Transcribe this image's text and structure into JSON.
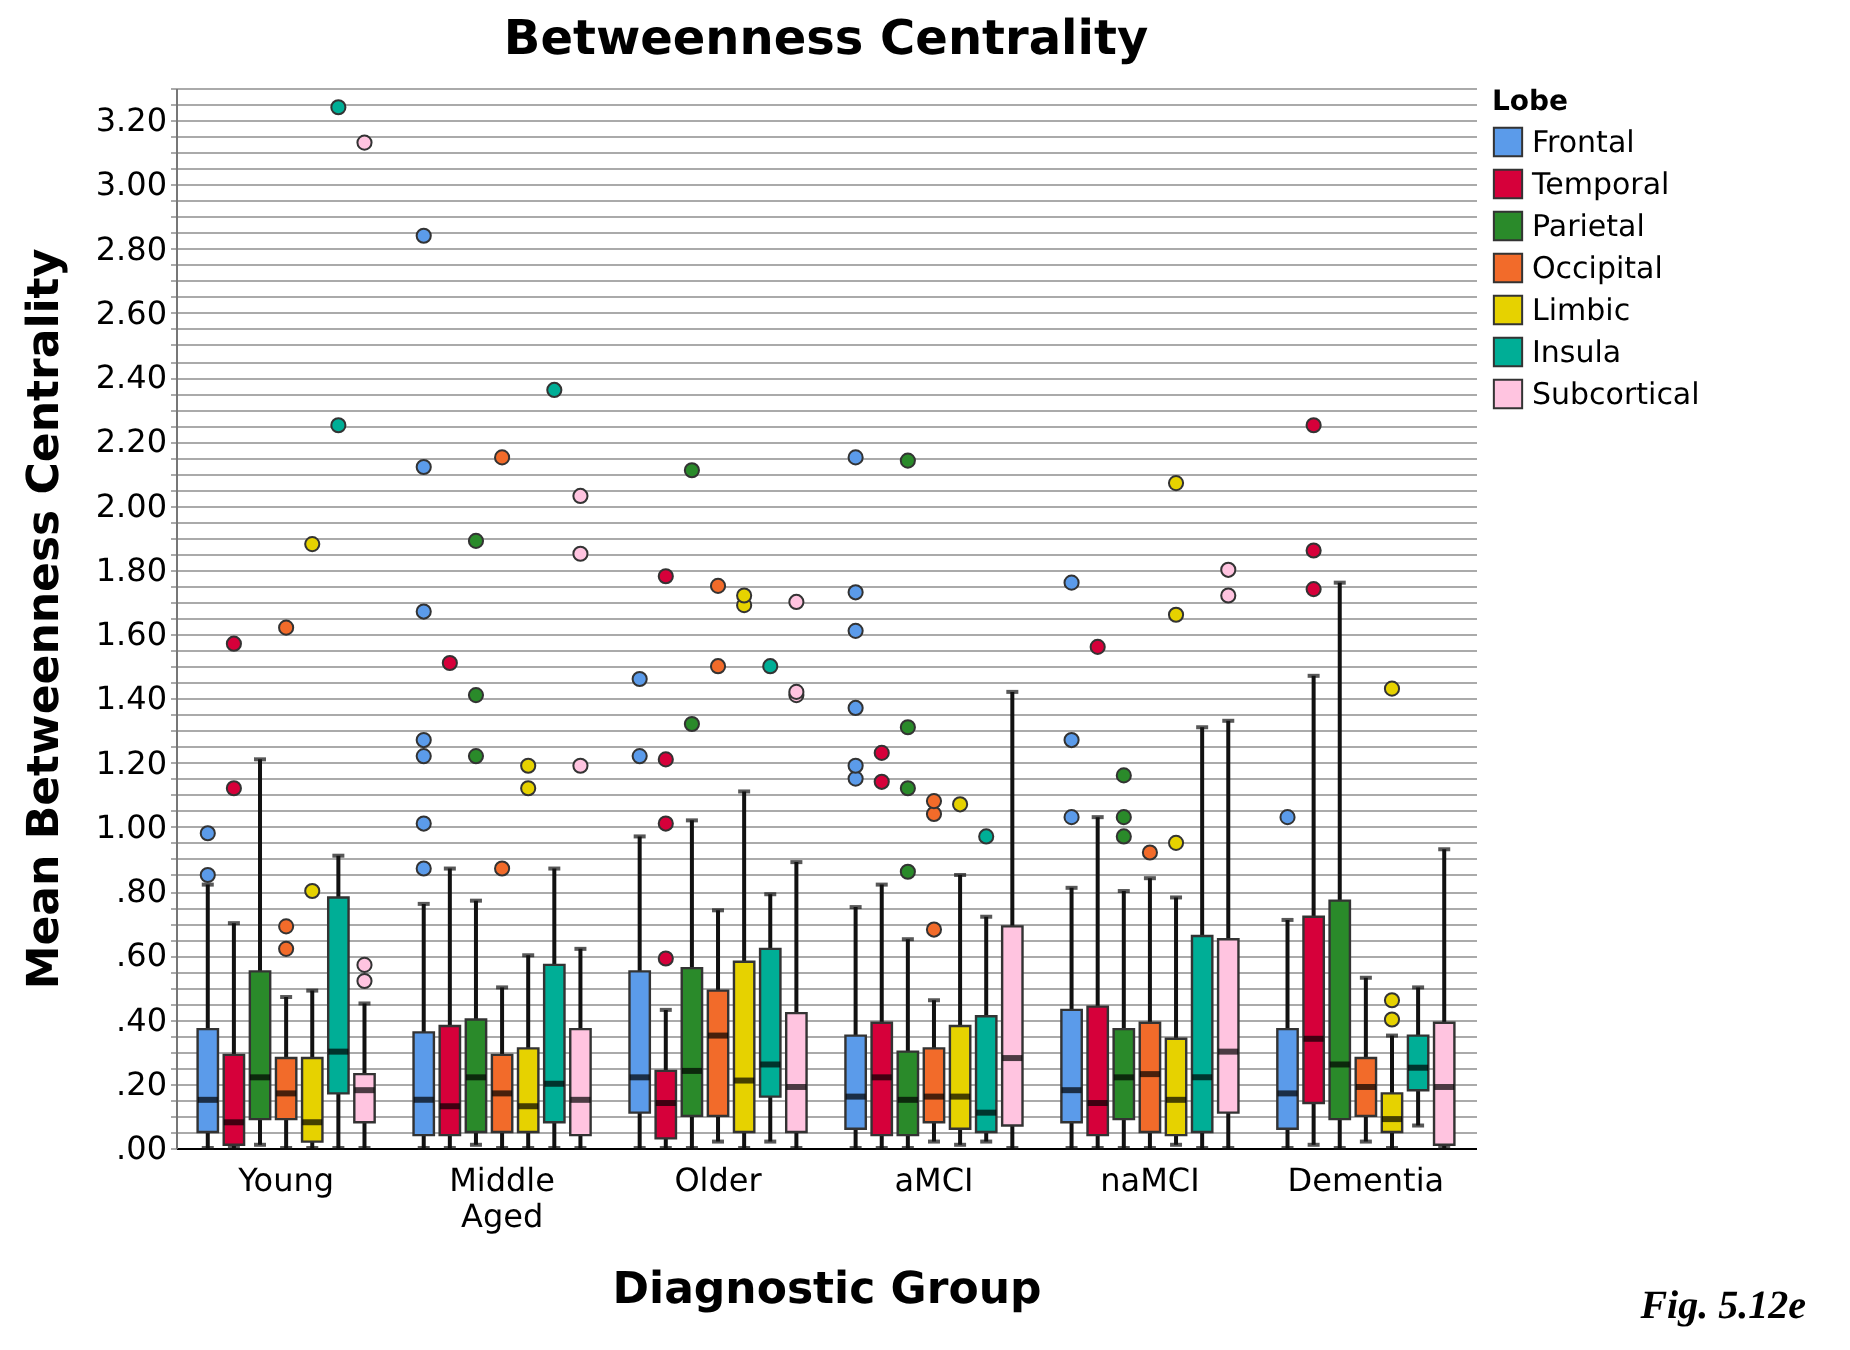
{
  "chart_data": {
    "type": "box",
    "title": "Betweenness Centrality",
    "xlabel": "Diagnostic Group",
    "ylabel": "Mean Betweenness Centrality",
    "legend_title": "Lobe",
    "legend": "top right",
    "grid": "y",
    "annotations": [
      "Fig. 5.12e"
    ],
    "categories": [
      "Young",
      "Middle Aged",
      "Older",
      "aMCI",
      "naMCI",
      "Dementia"
    ],
    "ylim": [
      0,
      3.3
    ],
    "yticks": [
      {
        "value": 0,
        "label": ".00"
      },
      {
        "value": 0.05,
        "label": null
      },
      {
        "value": 0.1,
        "label": null
      },
      {
        "value": 0.15,
        "label": null
      },
      {
        "value": 0.2,
        "label": ".20"
      },
      {
        "value": 0.25,
        "label": null
      },
      {
        "value": 0.3,
        "label": null
      },
      {
        "value": 0.35,
        "label": null
      },
      {
        "value": 0.4,
        "label": ".40"
      },
      {
        "value": 0.45,
        "label": null
      },
      {
        "value": 0.5,
        "label": null
      },
      {
        "value": 0.55,
        "label": null
      },
      {
        "value": 0.6,
        "label": ".60"
      },
      {
        "value": 0.65,
        "label": null
      },
      {
        "value": 0.7,
        "label": null
      },
      {
        "value": 0.75,
        "label": null
      },
      {
        "value": 0.8,
        "label": ".80"
      },
      {
        "value": 0.85,
        "label": null
      },
      {
        "value": 0.9,
        "label": null
      },
      {
        "value": 0.95,
        "label": null
      },
      {
        "value": 1,
        "label": "1.00"
      },
      {
        "value": 1.05,
        "label": null
      },
      {
        "value": 1.1,
        "label": null
      },
      {
        "value": 1.15,
        "label": null
      },
      {
        "value": 1.2,
        "label": "1.20"
      },
      {
        "value": 1.25,
        "label": null
      },
      {
        "value": 1.3,
        "label": null
      },
      {
        "value": 1.35,
        "label": null
      },
      {
        "value": 1.4,
        "label": "1.40"
      },
      {
        "value": 1.45,
        "label": null
      },
      {
        "value": 1.5,
        "label": null
      },
      {
        "value": 1.55,
        "label": null
      },
      {
        "value": 1.6,
        "label": "1.60"
      },
      {
        "value": 1.65,
        "label": null
      },
      {
        "value": 1.7,
        "label": null
      },
      {
        "value": 1.75,
        "label": null
      },
      {
        "value": 1.8,
        "label": "1.80"
      },
      {
        "value": 1.85,
        "label": null
      },
      {
        "value": 1.9,
        "label": null
      },
      {
        "value": 1.95,
        "label": null
      },
      {
        "value": 2,
        "label": "2.00"
      },
      {
        "value": 2.05,
        "label": null
      },
      {
        "value": 2.1,
        "label": null
      },
      {
        "value": 2.15,
        "label": null
      },
      {
        "value": 2.2,
        "label": "2.20"
      },
      {
        "value": 2.25,
        "label": null
      },
      {
        "value": 2.3,
        "label": null
      },
      {
        "value": 2.35,
        "label": null
      },
      {
        "value": 2.4,
        "label": "2.40"
      },
      {
        "value": 2.45,
        "label": null
      },
      {
        "value": 2.5,
        "label": null
      },
      {
        "value": 2.55,
        "label": null
      },
      {
        "value": 2.6,
        "label": "2.60"
      },
      {
        "value": 2.65,
        "label": null
      },
      {
        "value": 2.7,
        "label": null
      },
      {
        "value": 2.75,
        "label": null
      },
      {
        "value": 2.8,
        "label": "2.80"
      },
      {
        "value": 2.85,
        "label": null
      },
      {
        "value": 2.9,
        "label": null
      },
      {
        "value": 2.95,
        "label": null
      },
      {
        "value": 3,
        "label": "3.00"
      },
      {
        "value": 3.05,
        "label": null
      },
      {
        "value": 3.1,
        "label": null
      },
      {
        "value": 3.15,
        "label": null
      },
      {
        "value": 3.2,
        "label": "3.20"
      },
      {
        "value": 3.25,
        "label": null
      },
      {
        "value": 3.3,
        "label": null
      }
    ],
    "series": [
      {
        "name": "Frontal",
        "color": "#5b9bea",
        "boxes": [
          {
            "low": 0,
            "q1": 0.05,
            "median": 0.15,
            "q3": 0.37,
            "high": 0.82,
            "outliers": [
              0.85,
              0.98
            ]
          },
          {
            "low": 0,
            "q1": 0.04,
            "median": 0.15,
            "q3": 0.36,
            "high": 0.76,
            "outliers": [
              0.87,
              1.01,
              1.22,
              1.27,
              1.67,
              2.12,
              2.84
            ]
          },
          {
            "low": 0,
            "q1": 0.11,
            "median": 0.22,
            "q3": 0.55,
            "high": 0.97,
            "outliers": [
              1.22,
              1.46
            ]
          },
          {
            "low": 0,
            "q1": 0.06,
            "median": 0.16,
            "q3": 0.35,
            "high": 0.75,
            "outliers": [
              1.15,
              1.19,
              1.37,
              1.61,
              1.73,
              2.15
            ]
          },
          {
            "low": 0,
            "q1": 0.08,
            "median": 0.18,
            "q3": 0.43,
            "high": 0.81,
            "outliers": [
              1.03,
              1.27,
              1.76
            ]
          },
          {
            "low": 0,
            "q1": 0.06,
            "median": 0.17,
            "q3": 0.37,
            "high": 0.71,
            "outliers": [
              1.03
            ]
          }
        ]
      },
      {
        "name": "Temporal",
        "color": "#d6003a",
        "boxes": [
          {
            "low": 0,
            "q1": 0.01,
            "median": 0.08,
            "q3": 0.29,
            "high": 0.7,
            "outliers": [
              1.12,
              1.57
            ]
          },
          {
            "low": 0,
            "q1": 0.04,
            "median": 0.13,
            "q3": 0.38,
            "high": 0.87,
            "outliers": [
              1.51
            ]
          },
          {
            "low": 0,
            "q1": 0.03,
            "median": 0.14,
            "q3": 0.24,
            "high": 0.43,
            "outliers": [
              0.59,
              1.01,
              1.21,
              1.78
            ]
          },
          {
            "low": 0,
            "q1": 0.04,
            "median": 0.22,
            "q3": 0.39,
            "high": 0.82,
            "outliers": [
              1.14,
              1.23
            ]
          },
          {
            "low": 0,
            "q1": 0.04,
            "median": 0.14,
            "q3": 0.44,
            "high": 1.03,
            "outliers": [
              1.56
            ]
          },
          {
            "low": 0.01,
            "q1": 0.14,
            "median": 0.34,
            "q3": 0.72,
            "high": 1.47,
            "outliers": [
              1.74,
              1.86,
              2.25
            ]
          }
        ]
      },
      {
        "name": "Parietal",
        "color": "#2a8a2a",
        "boxes": [
          {
            "low": 0.01,
            "q1": 0.09,
            "median": 0.22,
            "q3": 0.55,
            "high": 1.21
          },
          {
            "low": 0.01,
            "q1": 0.05,
            "median": 0.22,
            "q3": 0.4,
            "high": 0.77,
            "outliers": [
              1.22,
              1.41,
              1.89
            ]
          },
          {
            "low": 0,
            "q1": 0.1,
            "median": 0.24,
            "q3": 0.56,
            "high": 1.02,
            "outliers": [
              1.32,
              2.11
            ]
          },
          {
            "low": 0,
            "q1": 0.04,
            "median": 0.15,
            "q3": 0.3,
            "high": 0.65,
            "outliers": [
              0.86,
              1.12,
              1.31,
              2.14
            ]
          },
          {
            "low": 0,
            "q1": 0.09,
            "median": 0.22,
            "q3": 0.37,
            "high": 0.8,
            "outliers": [
              0.97,
              1.03,
              1.16
            ]
          },
          {
            "low": 0,
            "q1": 0.09,
            "median": 0.26,
            "q3": 0.77,
            "high": 1.76
          }
        ]
      },
      {
        "name": "Occipital",
        "color": "#f26b2a",
        "boxes": [
          {
            "low": 0,
            "q1": 0.09,
            "median": 0.17,
            "q3": 0.28,
            "high": 0.47,
            "outliers": [
              0.62,
              0.69,
              1.62
            ]
          },
          {
            "low": 0,
            "q1": 0.05,
            "median": 0.17,
            "q3": 0.29,
            "high": 0.5,
            "outliers": [
              0.87,
              2.15
            ]
          },
          {
            "low": 0.02,
            "q1": 0.1,
            "median": 0.35,
            "q3": 0.49,
            "high": 0.74,
            "outliers": [
              1.5,
              1.75
            ]
          },
          {
            "low": 0.02,
            "q1": 0.08,
            "median": 0.16,
            "q3": 0.31,
            "high": 0.46,
            "outliers": [
              0.68,
              1.04,
              1.08
            ]
          },
          {
            "low": 0,
            "q1": 0.05,
            "median": 0.23,
            "q3": 0.39,
            "high": 0.84,
            "outliers": [
              0.92
            ]
          },
          {
            "low": 0.02,
            "q1": 0.1,
            "median": 0.19,
            "q3": 0.28,
            "high": 0.53
          }
        ]
      },
      {
        "name": "Limbic",
        "color": "#e6d200",
        "boxes": [
          {
            "low": 0,
            "q1": 0.02,
            "median": 0.08,
            "q3": 0.28,
            "high": 0.49,
            "outliers": [
              0.8,
              1.88
            ]
          },
          {
            "low": 0,
            "q1": 0.05,
            "median": 0.13,
            "q3": 0.31,
            "high": 0.6,
            "outliers": [
              1.12,
              1.19
            ]
          },
          {
            "low": 0,
            "q1": 0.05,
            "median": 0.21,
            "q3": 0.58,
            "high": 1.11,
            "outliers": [
              1.69,
              1.72
            ]
          },
          {
            "low": 0.01,
            "q1": 0.06,
            "median": 0.16,
            "q3": 0.38,
            "high": 0.85,
            "outliers": [
              1.07
            ]
          },
          {
            "low": 0.01,
            "q1": 0.04,
            "median": 0.15,
            "q3": 0.34,
            "high": 0.78,
            "outliers": [
              0.95,
              1.66,
              2.07
            ]
          },
          {
            "low": 0,
            "q1": 0.05,
            "median": 0.09,
            "q3": 0.17,
            "high": 0.35,
            "outliers": [
              0.4,
              0.46,
              1.43
            ]
          }
        ]
      },
      {
        "name": "Insula",
        "color": "#00ae96",
        "boxes": [
          {
            "low": 0,
            "q1": 0.17,
            "median": 0.3,
            "q3": 0.78,
            "high": 0.91,
            "outliers": [
              2.25,
              3.24
            ]
          },
          {
            "low": 0,
            "q1": 0.08,
            "median": 0.2,
            "q3": 0.57,
            "high": 0.87,
            "outliers": [
              2.36
            ]
          },
          {
            "low": 0.02,
            "q1": 0.16,
            "median": 0.26,
            "q3": 0.62,
            "high": 0.79,
            "outliers": [
              1.5
            ]
          },
          {
            "low": 0.02,
            "q1": 0.05,
            "median": 0.11,
            "q3": 0.41,
            "high": 0.72,
            "outliers": [
              0.97
            ]
          },
          {
            "low": 0,
            "q1": 0.05,
            "median": 0.22,
            "q3": 0.66,
            "high": 1.31
          },
          {
            "low": 0.07,
            "q1": 0.18,
            "median": 0.25,
            "q3": 0.35,
            "high": 0.5
          }
        ]
      },
      {
        "name": "Subcortical",
        "color": "#ffc4e0",
        "boxes": [
          {
            "low": 0,
            "q1": 0.08,
            "median": 0.18,
            "q3": 0.23,
            "high": 0.45,
            "outliers": [
              0.52,
              0.57,
              3.13
            ]
          },
          {
            "low": 0,
            "q1": 0.04,
            "median": 0.15,
            "q3": 0.37,
            "high": 0.62,
            "outliers": [
              1.19,
              1.85,
              2.03
            ]
          },
          {
            "low": 0,
            "q1": 0.05,
            "median": 0.19,
            "q3": 0.42,
            "high": 0.89,
            "outliers": [
              1.41,
              1.42,
              1.7
            ]
          },
          {
            "low": 0,
            "q1": 0.07,
            "median": 0.28,
            "q3": 0.69,
            "high": 1.42
          },
          {
            "low": 0,
            "q1": 0.11,
            "median": 0.3,
            "q3": 0.65,
            "high": 1.33,
            "outliers": [
              1.72,
              1.8
            ]
          },
          {
            "low": 0,
            "q1": 0.01,
            "median": 0.19,
            "q3": 0.39,
            "high": 0.93
          }
        ]
      }
    ]
  }
}
